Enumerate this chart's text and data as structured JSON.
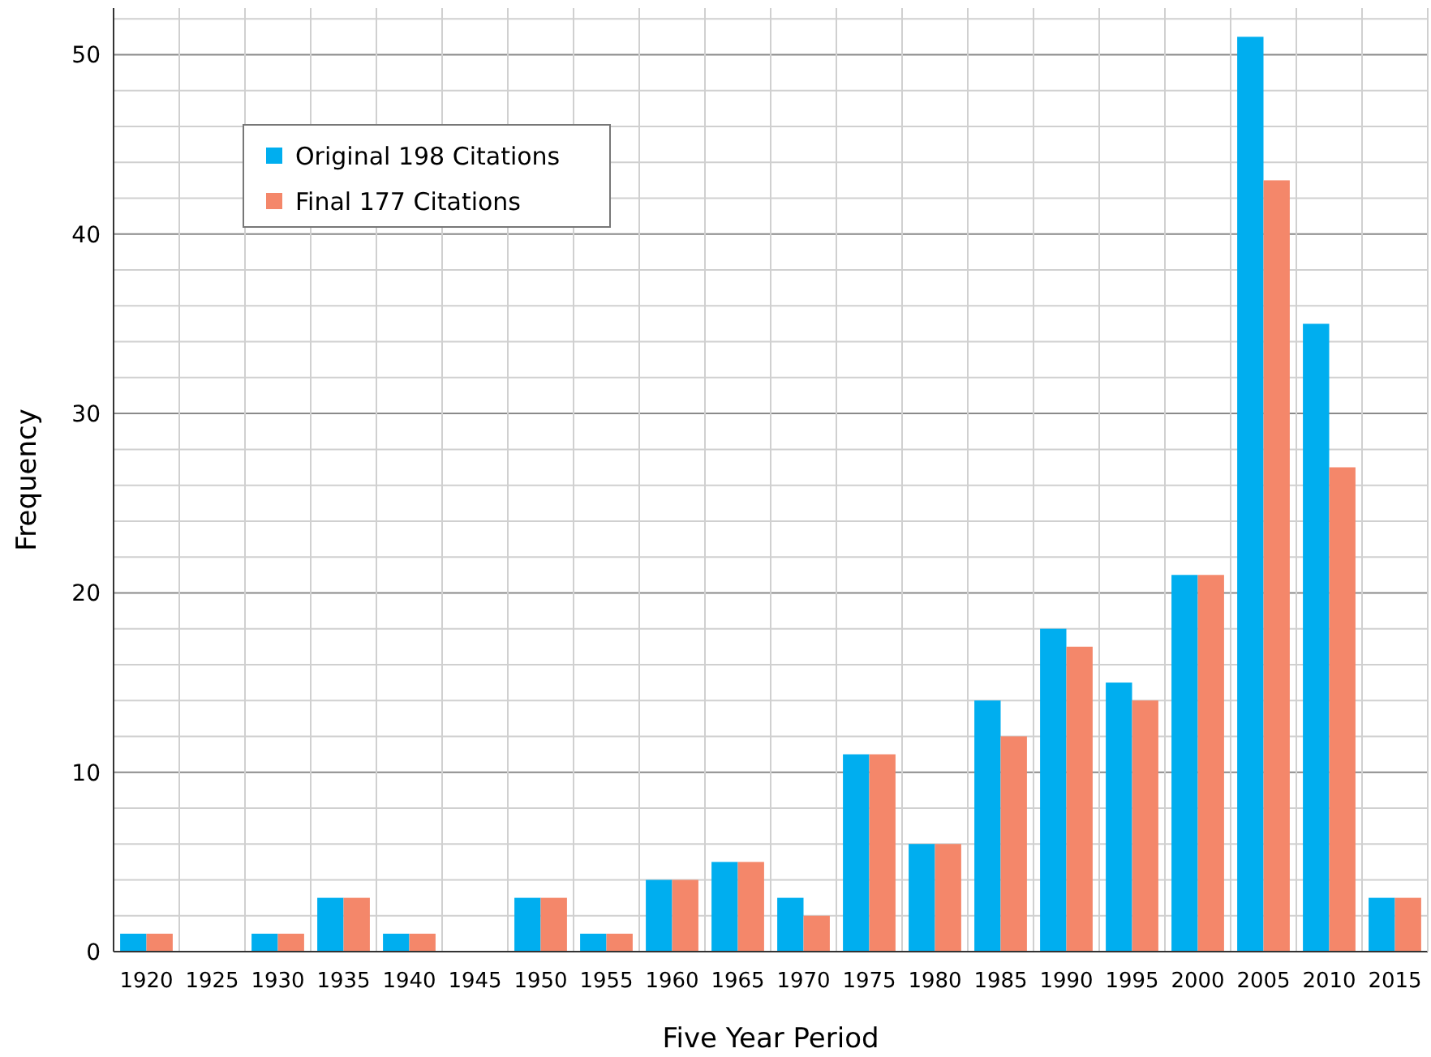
{
  "chart_data": {
    "type": "bar",
    "xlabel": "Five Year Period",
    "ylabel": "Frequency",
    "categories": [
      "1920",
      "1925",
      "1930",
      "1935",
      "1940",
      "1945",
      "1950",
      "1955",
      "1960",
      "1965",
      "1970",
      "1975",
      "1980",
      "1985",
      "1990",
      "1995",
      "2000",
      "2005",
      "2010",
      "2015"
    ],
    "series": [
      {
        "name": "Original 198 Citations",
        "color": "#00aeef",
        "values": [
          1,
          0,
          1,
          3,
          1,
          0,
          3,
          1,
          4,
          5,
          3,
          11,
          6,
          14,
          18,
          15,
          21,
          51,
          35,
          3
        ]
      },
      {
        "name": "Final 177 Citations",
        "color": "#f4876a",
        "values": [
          1,
          0,
          1,
          3,
          1,
          0,
          3,
          1,
          4,
          5,
          2,
          11,
          6,
          12,
          17,
          14,
          21,
          43,
          27,
          3
        ]
      }
    ],
    "ylim": [
      0,
      52.6
    ],
    "yticks": [
      0,
      {
        "value": 2,
        "label": null
      },
      {
        "value": 4,
        "label": null
      },
      {
        "value": 6,
        "label": null
      },
      {
        "value": 8,
        "label": null
      },
      10,
      {
        "value": 12,
        "label": null
      },
      {
        "value": 14,
        "label": null
      },
      {
        "value": 16,
        "label": null
      },
      {
        "value": 18,
        "label": null
      },
      20,
      {
        "value": 22,
        "label": null
      },
      {
        "value": 24,
        "label": null
      },
      {
        "value": 26,
        "label": null
      },
      {
        "value": 28,
        "label": null
      },
      30,
      {
        "value": 32,
        "label": null
      },
      {
        "value": 34,
        "label": null
      },
      {
        "value": 36,
        "label": null
      },
      {
        "value": 38,
        "label": null
      },
      40,
      {
        "value": 42,
        "label": null
      },
      {
        "value": 44,
        "label": null
      },
      {
        "value": 46,
        "label": null
      },
      {
        "value": 48,
        "label": null
      },
      50,
      {
        "value": 52,
        "label": null
      }
    ],
    "grid": true,
    "legend": "top left"
  }
}
